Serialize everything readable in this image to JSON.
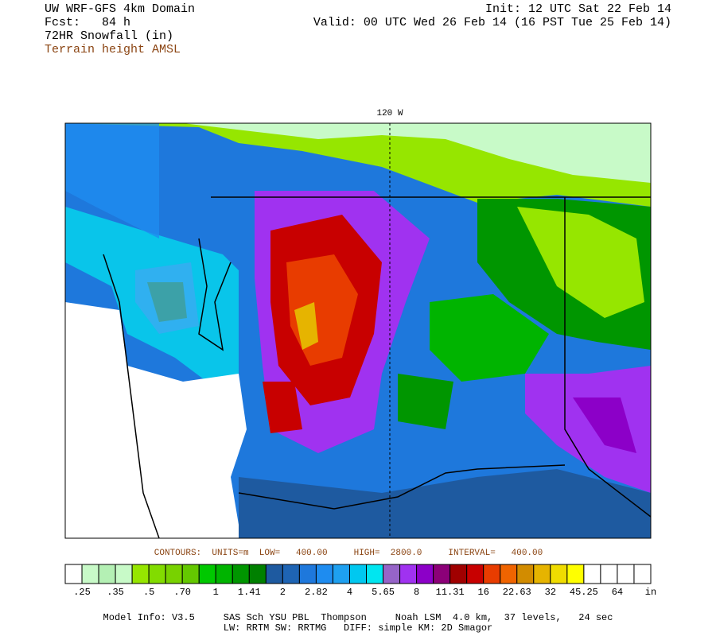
{
  "header": {
    "left": [
      "UW WRF-GFS 4km Domain",
      "Fcst:   84 h",
      "72HR Snowfall (in)"
    ],
    "overlay": "Terrain height AMSL",
    "right": [
      "Init: 12 UTC Sat 22 Feb 14",
      "Valid: 00 UTC Wed 26 Feb 14 (16 PST Tue 25 Feb 14)"
    ]
  },
  "map": {
    "longitude_label": "120 W"
  },
  "contours": "CONTOURS:  UNITS=m  LOW=   400.00     HIGH=  2800.0     INTERVAL=   400.00",
  "colorbar": {
    "colors": [
      "#ffffff",
      "#c8fac8",
      "#b4f0b4",
      "#c8fac8",
      "#96e600",
      "#82dc00",
      "#78d200",
      "#64c800",
      "#00c800",
      "#00b400",
      "#009600",
      "#008000",
      "#1e5aa0",
      "#1e64b4",
      "#1e78dc",
      "#1e8cf0",
      "#1ea0f0",
      "#00c8f0",
      "#00e6f0",
      "#9664c8",
      "#a032f0",
      "#8c00c8",
      "#8c0078",
      "#a00000",
      "#c80000",
      "#e83c00",
      "#f06400",
      "#d28c00",
      "#e6b400",
      "#f0dc00",
      "#ffff00",
      "#ffffff",
      "#ffffff",
      "#ffffff",
      "#ffffff"
    ],
    "labels": [
      ".25",
      ".35",
      ".5",
      ".70",
      "1",
      "1.41",
      "2",
      "2.82",
      "4",
      "5.65",
      "8",
      "11.31",
      "16",
      "22.63",
      "32",
      "45.25",
      "64"
    ],
    "unit": "in"
  },
  "footer": [
    "Model Info: V3.5     SAS Sch YSU PBL  Thompson     Noah LSM  4.0 km,  37 levels,   24 sec",
    "LW: RRTM SW: RRTMG   DIFF: simple KM: 2D Smagor"
  ]
}
